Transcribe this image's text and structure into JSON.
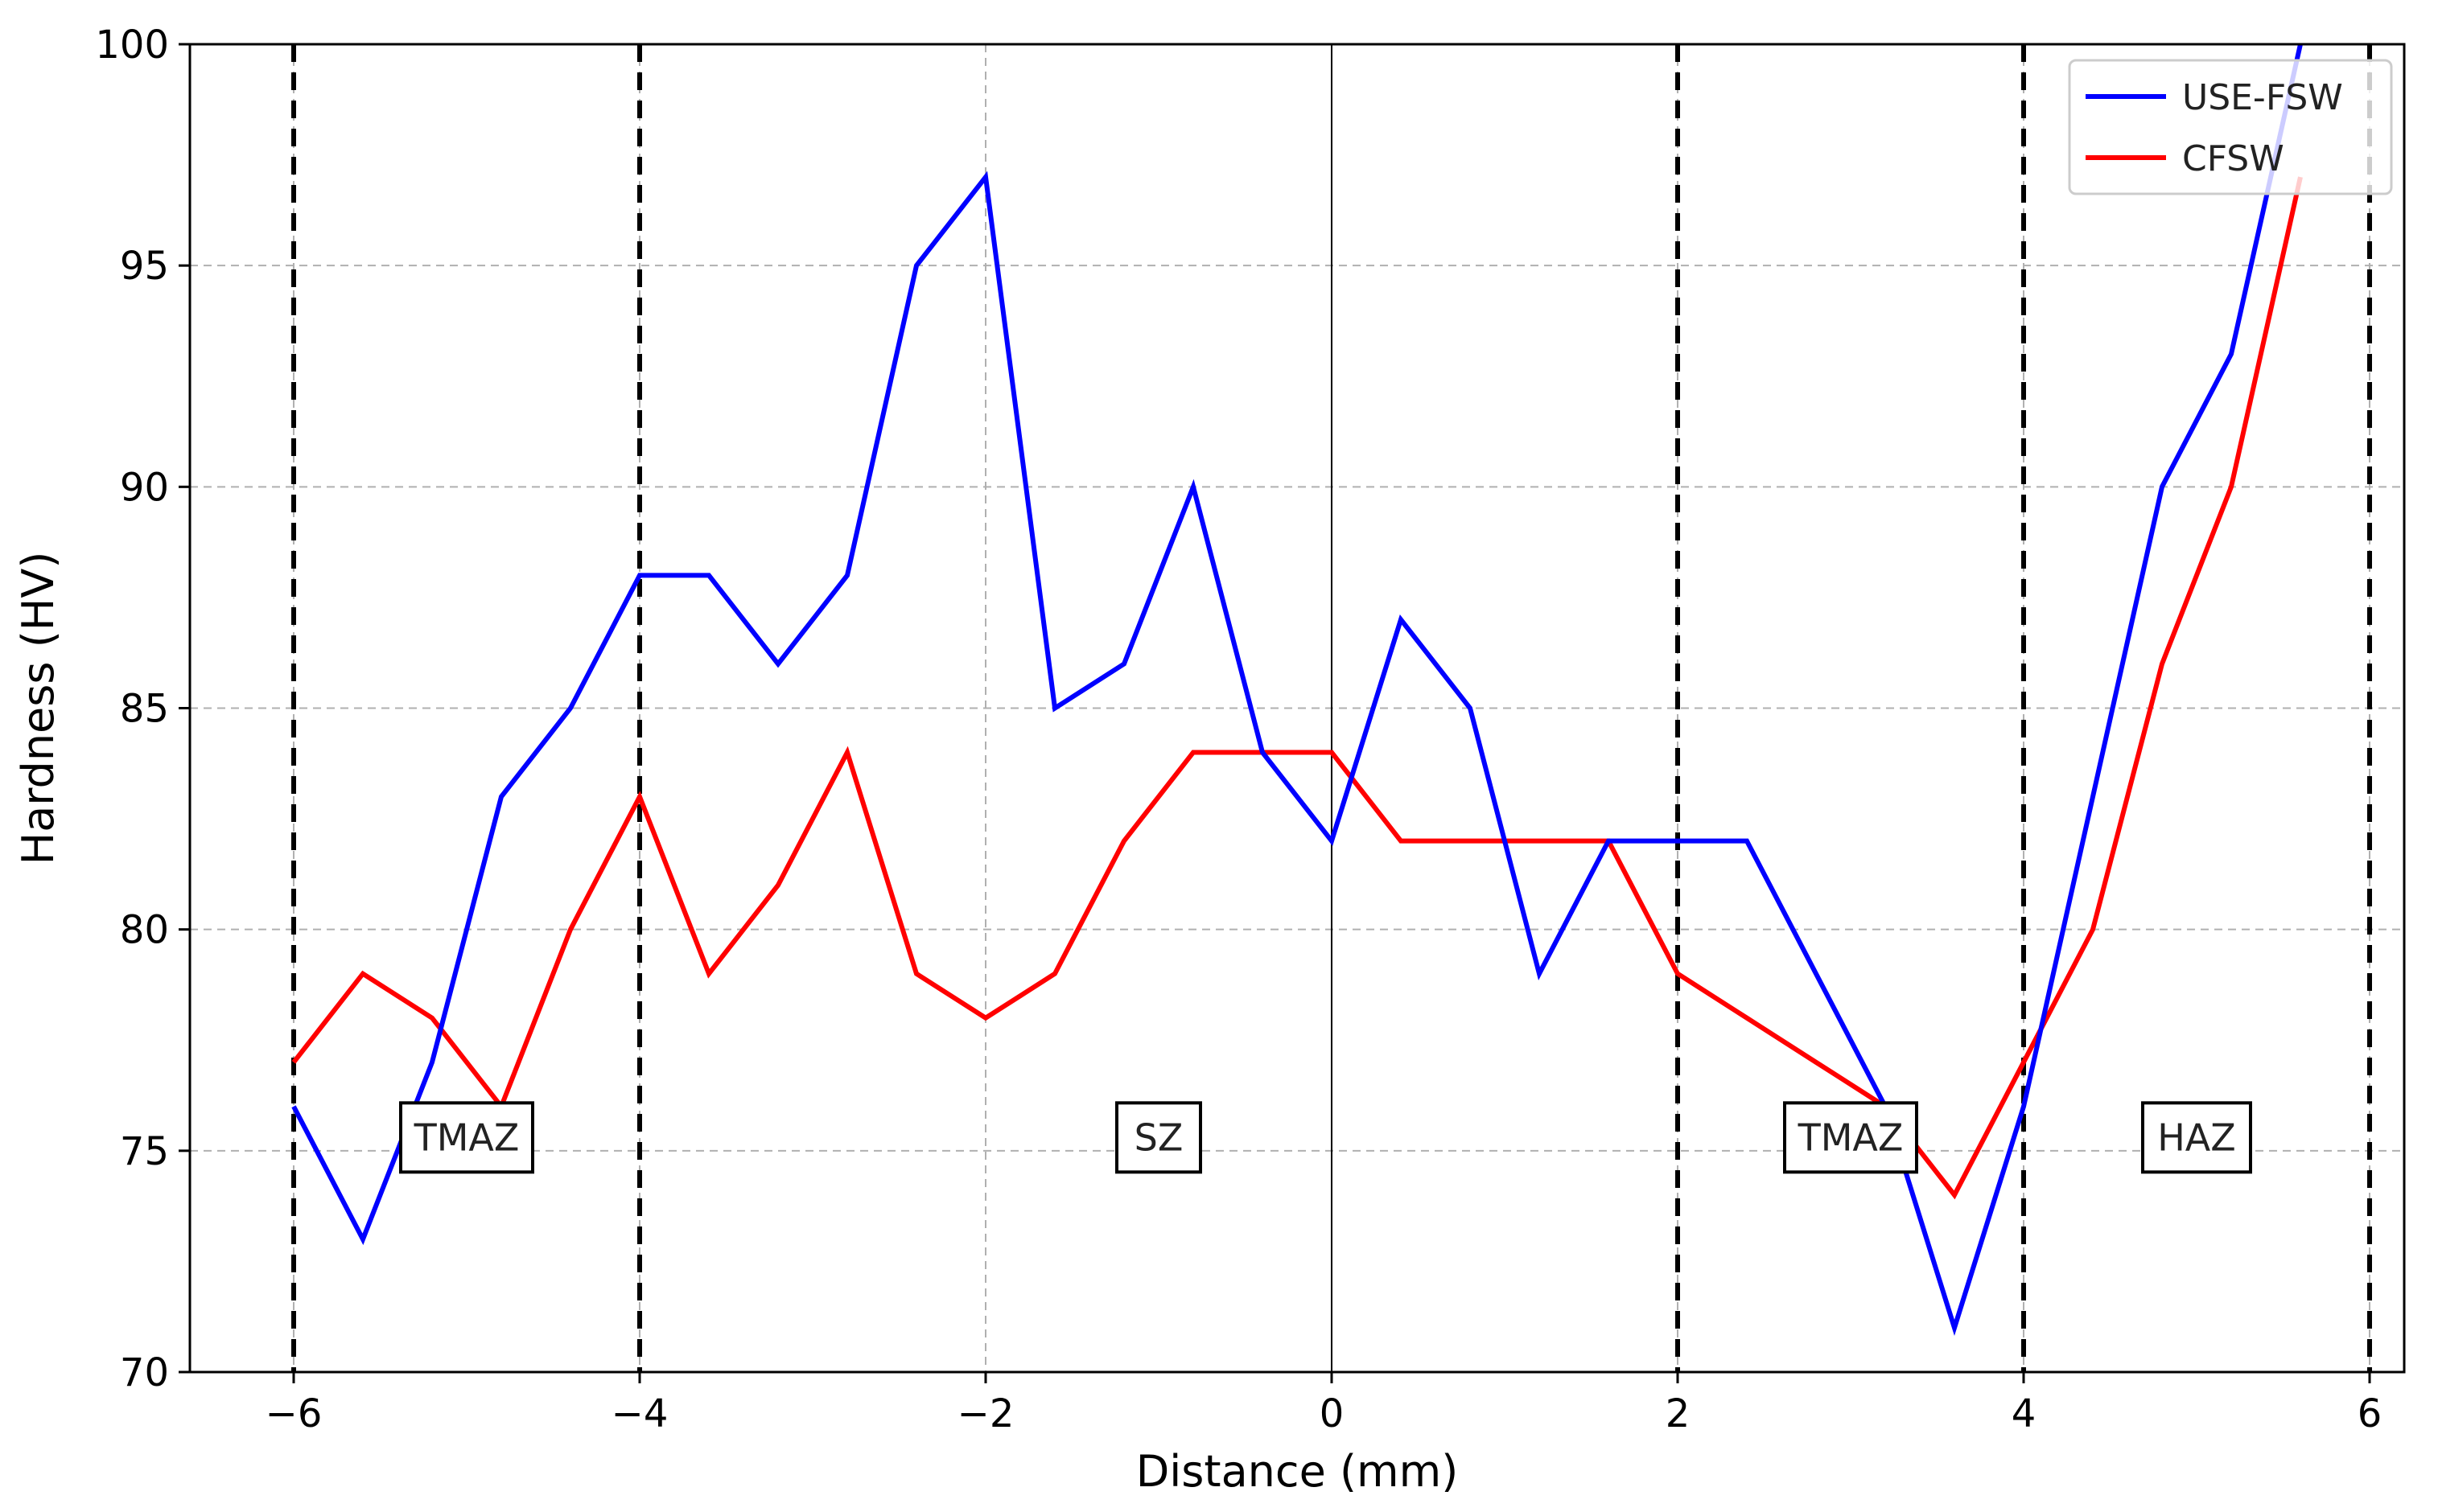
{
  "chart_data": {
    "type": "line",
    "title": "",
    "xlabel": "Distance (mm)",
    "ylabel": "Hardness (HV)",
    "xlim": [
      -6.6,
      6.2
    ],
    "ylim": [
      70,
      100
    ],
    "xticks": [
      -6,
      -4,
      -2,
      0,
      2,
      4,
      6
    ],
    "xtick_labels": [
      "−6",
      "−4",
      "−2",
      "0",
      "2",
      "4",
      "6"
    ],
    "yticks": [
      70,
      75,
      80,
      85,
      90,
      95,
      100
    ],
    "ytick_labels": [
      "70",
      "75",
      "80",
      "85",
      "90",
      "95",
      "100"
    ],
    "grid": true,
    "legend_position": "top-right",
    "series": [
      {
        "name": "USE-FSW",
        "color": "#0000ff",
        "x": [
          -6,
          -5.6,
          -5.2,
          -4.8,
          -4.4,
          -4,
          -3.6,
          -3.2,
          -2.8,
          -2.4,
          -2,
          -1.6,
          -1.2,
          -0.8,
          -0.4,
          0,
          0.4,
          0.8,
          1.2,
          1.6,
          2,
          2.4,
          2.8,
          3.2,
          3.6,
          4,
          4.4,
          4.8,
          5.2,
          5.6
        ],
        "y": [
          76,
          73,
          77,
          83,
          85,
          88,
          88,
          86,
          88,
          95,
          97,
          85,
          86,
          90,
          84,
          82,
          87,
          85,
          79,
          82,
          82,
          82,
          79,
          76,
          71,
          76,
          83,
          90,
          93,
          100
        ]
      },
      {
        "name": "CFSW",
        "color": "#ff0000",
        "x": [
          -6,
          -5.6,
          -5.2,
          -4.8,
          -4.4,
          -4,
          -3.6,
          -3.2,
          -2.8,
          -2.4,
          -2,
          -1.6,
          -1.2,
          -0.8,
          -0.4,
          0,
          0.4,
          0.8,
          1.2,
          1.6,
          2,
          2.4,
          2.8,
          3.2,
          3.6,
          4,
          4.4,
          4.8,
          5.2,
          5.6
        ],
        "y": [
          77,
          79,
          78,
          76,
          80,
          83,
          79,
          81,
          84,
          79,
          78,
          79,
          82,
          84,
          84,
          84,
          82,
          82,
          82,
          82,
          79,
          78,
          77,
          76,
          74,
          77,
          80,
          86,
          90,
          97
        ]
      }
    ],
    "boundary_lines": [
      -6,
      -4,
      2,
      4,
      6
    ],
    "center_line": 0,
    "regions": [
      {
        "label": "TMAZ",
        "x": -5.0,
        "y": 75.3
      },
      {
        "label": "SZ",
        "x": -1.0,
        "y": 75.3
      },
      {
        "label": "TMAZ",
        "x": 3.0,
        "y": 75.3
      },
      {
        "label": "HAZ",
        "x": 5.0,
        "y": 75.3
      }
    ]
  }
}
